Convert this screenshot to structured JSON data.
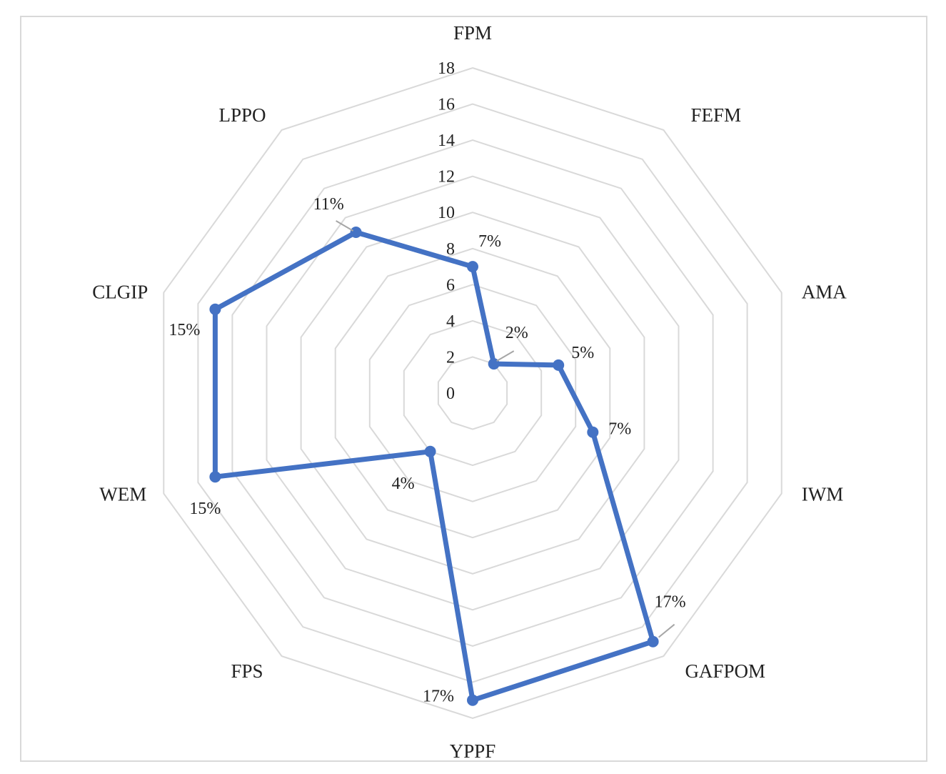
{
  "chart_data": {
    "type": "radar",
    "categories": [
      "FPM",
      "FEFM",
      "AMA",
      "IWM",
      "GAFPOM",
      "YPPF",
      "FPS",
      "WEM",
      "CLGIP",
      "LPPO"
    ],
    "series": [
      {
        "values": [
          7,
          2,
          5,
          7,
          17,
          17,
          4,
          15,
          15,
          11
        ],
        "data_labels": [
          "7%",
          "2%",
          "5%",
          "7%",
          "17%",
          "17%",
          "4%",
          "15%",
          "15%",
          "11%"
        ],
        "color": "#4472c4"
      }
    ],
    "rlim": [
      0,
      18
    ],
    "r_ticks": [
      "0",
      "2",
      "4",
      "6",
      "8",
      "10",
      "12",
      "14",
      "16",
      "18"
    ],
    "grid": true,
    "gridline_color": "#d9d9d9",
    "legend": "none"
  }
}
